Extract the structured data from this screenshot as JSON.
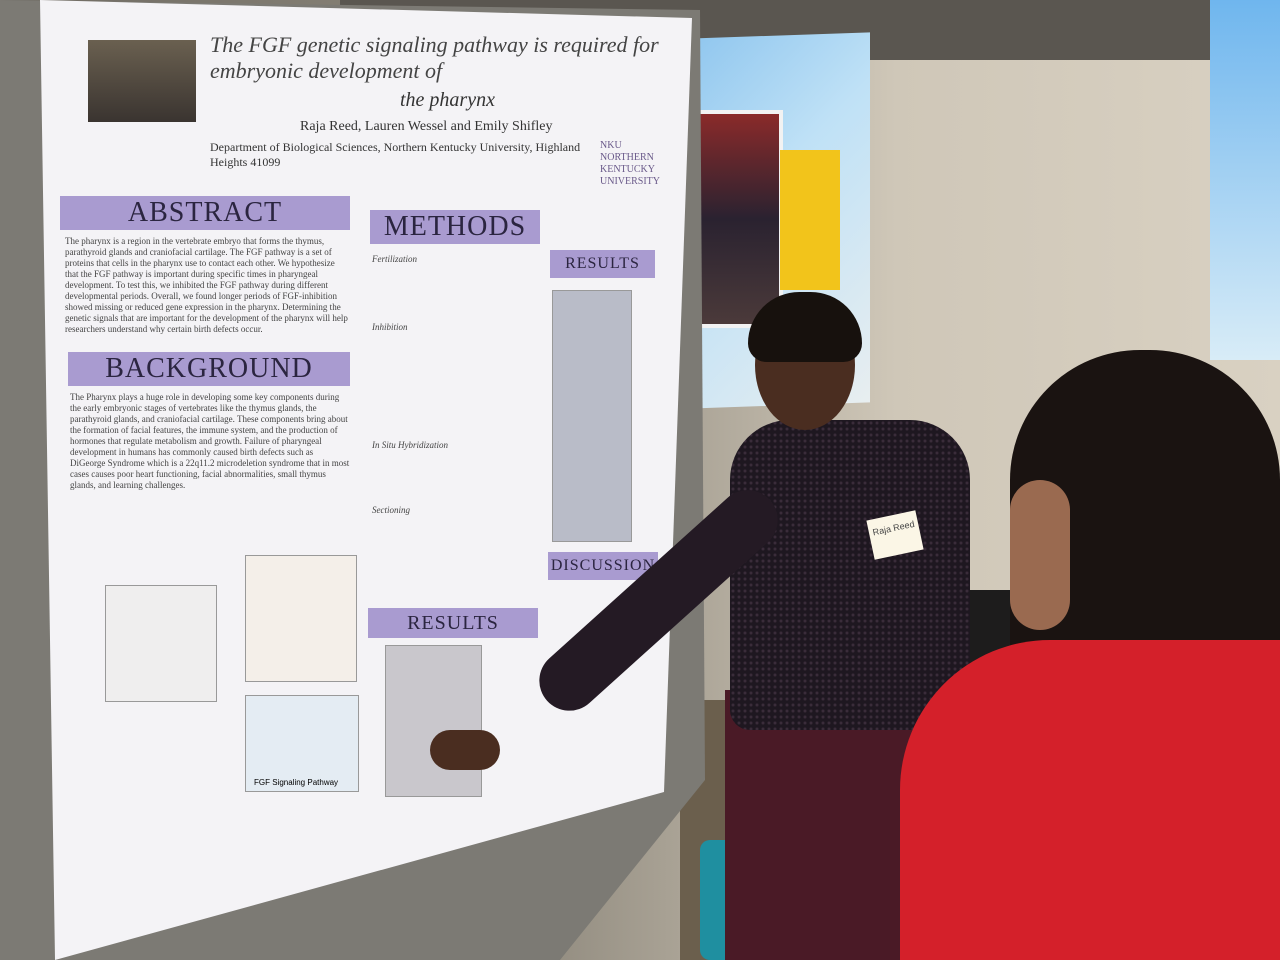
{
  "poster": {
    "title_line1": "The FGF genetic signaling pathway is required for embryonic development of",
    "title_line2": "the pharynx",
    "authors": "Raja Reed, Lauren Wessel and Emily Shifley",
    "department": "Department of Biological Sciences, Northern Kentucky University, Highland Heights 41099",
    "logo": "NKU NORTHERN KENTUCKY UNIVERSITY",
    "sections": {
      "abstract": "ABSTRACT",
      "background": "BACKGROUND",
      "methods": "METHODS",
      "results_top": "RESULTS",
      "results_bottom": "RESULTS",
      "discussion": "DISCUSSION"
    },
    "abstract_text": "The pharynx is a region in the vertebrate embryo that forms the thymus, parathyroid glands and craniofacial cartilage. The FGF pathway is a set of proteins that cells in the pharynx use to contact each other. We hypothesize that the FGF pathway is important during specific times in pharyngeal development. To test this, we inhibited the FGF pathway during different developmental periods. Overall, we found longer periods of FGF-inhibition showed missing or reduced gene expression in the pharynx. Determining the genetic signals that are important for the development of the pharynx will help researchers understand why certain birth defects occur.",
    "background_text": "The Pharynx plays a huge role in developing some key components during the early embryonic stages of vertebrates like the thymus glands, the parathyroid glands, and craniofacial cartilage. These components bring about the formation of facial features, the immune system, and the production of hormones that regulate metabolism and growth. Failure of pharyngeal development in humans has commonly caused birth defects such as DiGeorge Syndrome which is a 22q11.2 microdeletion syndrome that in most cases causes poor heart functioning, facial abnormalities, small thymus glands, and learning challenges.",
    "methods_labels": [
      "Fertilization",
      "Inhibition",
      "In Situ Hybridization",
      "Sectioning"
    ],
    "figure_caption": "FGF Signaling Pathway"
  },
  "badge": {
    "name": "Raja Reed"
  }
}
